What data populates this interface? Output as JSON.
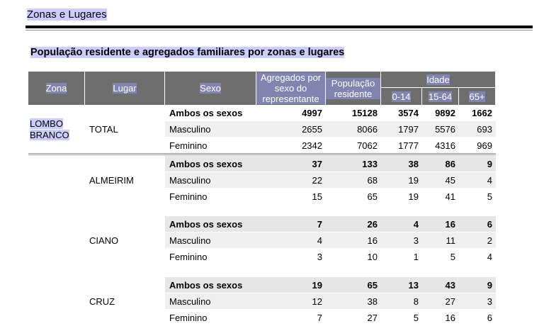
{
  "header": {
    "title": "Zonas e Lugares"
  },
  "table": {
    "title": "População residente e agregados familiares por zonas e lugares",
    "columns": {
      "zona": "Zona",
      "lugar": "Lugar",
      "sexo": "Sexo",
      "agregados": "Agregados por sexo do representante",
      "populacao": "População residente",
      "idade": "Idade",
      "idade_groups": [
        "0-14",
        "15-64",
        "65+"
      ]
    },
    "zona": "LOMBO BRANCO",
    "groups": [
      {
        "lugar": "TOTAL",
        "rows": [
          [
            "Ambos os sexos",
            4997,
            15128,
            3574,
            9892,
            1662
          ],
          [
            "Masculino",
            2655,
            8066,
            1797,
            5576,
            693
          ],
          [
            "Feminino",
            2342,
            7062,
            1777,
            4316,
            969
          ]
        ]
      },
      {
        "lugar": "ALMEIRIM",
        "rows": [
          [
            "Ambos os sexos",
            37,
            133,
            38,
            86,
            9
          ],
          [
            "Masculino",
            22,
            68,
            19,
            45,
            4
          ],
          [
            "Feminino",
            15,
            65,
            19,
            41,
            5
          ]
        ]
      },
      {
        "lugar": "CIANO",
        "rows": [
          [
            "Ambos os sexos",
            7,
            26,
            4,
            16,
            6
          ],
          [
            "Masculino",
            4,
            16,
            3,
            11,
            2
          ],
          [
            "Feminino",
            3,
            10,
            1,
            5,
            4
          ]
        ]
      },
      {
        "lugar": "CRUZ",
        "rows": [
          [
            "Ambos os sexos",
            19,
            65,
            13,
            43,
            9
          ],
          [
            "Masculino",
            12,
            38,
            8,
            27,
            3
          ],
          [
            "Feminino",
            7,
            27,
            5,
            16,
            6
          ]
        ]
      }
    ]
  }
}
